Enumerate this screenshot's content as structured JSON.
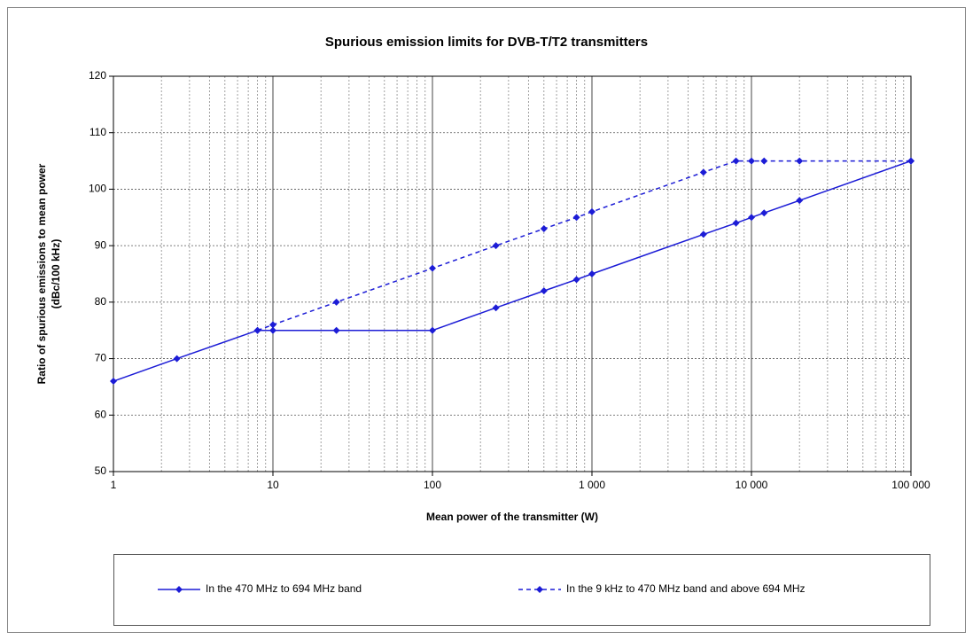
{
  "chart_data": {
    "type": "line",
    "title": "Spurious emission limits for DVB-T/T2 transmitters",
    "x_label": "Mean power of the transmitter (W)",
    "y_label": [
      "Ratio of spurious emissions to mean power",
      "(dBc/100 kHz)"
    ],
    "xlog": true,
    "xlim": [
      1,
      100000
    ],
    "xticks": [
      1,
      10,
      100,
      {
        "value": 1000,
        "label": "1 000"
      },
      {
        "value": 10000,
        "label": "10 000"
      },
      {
        "value": 100000,
        "label": "100 000"
      }
    ],
    "ylim": [
      50,
      120
    ],
    "yticks": [
      50,
      60,
      70,
      80,
      90,
      100,
      110,
      120
    ],
    "grid": true,
    "minor_grid": true,
    "legend": "bottom",
    "series": [
      {
        "name": "In the 470 MHz to 694 MHz band",
        "color": "#1c1cd6",
        "dash": false,
        "x": [
          1,
          2.5,
          8,
          10,
          25,
          100,
          250,
          500,
          800,
          1000,
          5000,
          8000,
          10000,
          12000,
          20000,
          100000
        ],
        "values": [
          66,
          70,
          75,
          75,
          75,
          75,
          79,
          82,
          84,
          85,
          92,
          94,
          95,
          95.8,
          98,
          105
        ]
      },
      {
        "name": "In the 9 kHz to 470 MHz band and above 694 MHz",
        "color": "#1c1cd6",
        "dash": true,
        "x": [
          8,
          10,
          25,
          100,
          250,
          500,
          800,
          1000,
          5000,
          8000,
          10000,
          12000,
          20000,
          100000
        ],
        "values": [
          75,
          76,
          80,
          86,
          90,
          93,
          95,
          96,
          103,
          105,
          105,
          105,
          105,
          105
        ]
      }
    ]
  }
}
